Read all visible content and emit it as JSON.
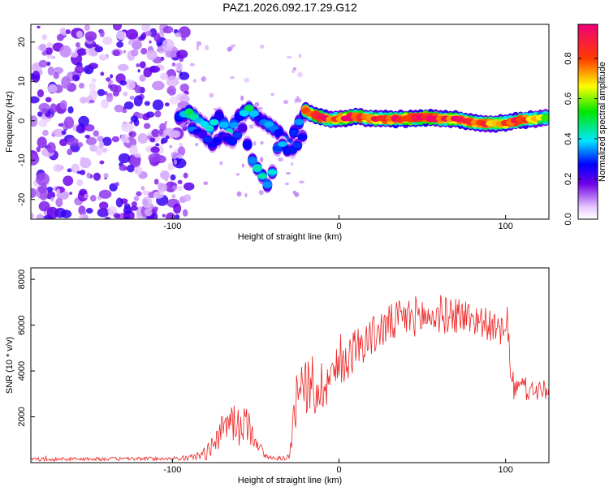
{
  "title": "PAZ1.2026.092.17.29.G12",
  "chart_data": [
    {
      "type": "heatmap",
      "title": "PAZ1.2026.092.17.29.G12",
      "xlabel": "Height of straight line (km)",
      "ylabel": "Frequency (Hz)",
      "xlim": [
        -185,
        126
      ],
      "ylim": [
        -25,
        24.5
      ],
      "xticks": [
        -100,
        0,
        100
      ],
      "xtick_labels": [
        "-100",
        "0",
        "100"
      ],
      "yticks": [
        -20,
        -10,
        0,
        10,
        20
      ],
      "ytick_labels": [
        "-20",
        "-10",
        "0",
        "10",
        "20"
      ],
      "colorbar": {
        "label": "Normalized spectral amplitude",
        "range": [
          0,
          0.97
        ],
        "ticks": [
          0.0,
          0.2,
          0.4,
          0.6,
          0.8
        ],
        "tick_labels": [
          "0.0",
          "0.2",
          "0.4",
          "0.6",
          "0.8"
        ]
      },
      "traces": [
        {
          "name": "main-trace",
          "x": [
            -20,
            -15,
            -10,
            -5,
            0,
            5,
            10,
            20,
            30,
            40,
            50,
            60,
            70,
            80,
            90,
            100,
            110,
            120,
            126
          ],
          "y": [
            2.5,
            1.5,
            0.8,
            0.3,
            0.5,
            0.8,
            1.0,
            0.6,
            0.4,
            0.5,
            0.8,
            0.6,
            0.4,
            -0.3,
            -0.8,
            -0.6,
            0.2,
            0.6,
            0.8
          ],
          "level": [
            0.85,
            0.85,
            0.9,
            0.8,
            0.8,
            0.95,
            0.9,
            0.85,
            0.9,
            0.95,
            0.95,
            0.85,
            0.9,
            0.85,
            0.8,
            0.8,
            0.9,
            0.7,
            0.6
          ]
        },
        {
          "name": "upper-branch",
          "x": [
            -96,
            -90,
            -84,
            -78,
            -72,
            -66,
            -60,
            -54,
            -48,
            -42,
            -36,
            -30,
            -26,
            -22,
            -19
          ],
          "y": [
            1.0,
            2.0,
            0.0,
            -2.0,
            1.0,
            -3.0,
            1.0,
            3.0,
            0.5,
            -1.0,
            -3.0,
            -6.0,
            -2.0,
            1.0,
            3.0
          ],
          "level": [
            0.3,
            0.5,
            0.35,
            0.45,
            0.3,
            0.5,
            0.3,
            0.45,
            0.3,
            0.35,
            0.3,
            0.3,
            0.35,
            0.3,
            0.25
          ]
        },
        {
          "name": "lower-branch",
          "x": [
            -88,
            -82,
            -76,
            -70,
            -64,
            -58,
            -52,
            -46,
            -42,
            -36,
            -30,
            -26,
            -22
          ],
          "y": [
            -2.0,
            -3.5,
            -6.0,
            -4.0,
            -5.0,
            -2.0,
            -10.0,
            -14.0,
            -17.0,
            -5.0,
            -8.0,
            -7.0,
            -4.0
          ],
          "level": [
            0.3,
            0.25,
            0.3,
            0.25,
            0.3,
            0.25,
            0.35,
            0.45,
            0.4,
            0.35,
            0.3,
            0.3,
            0.25
          ]
        }
      ],
      "noise_region": {
        "x": [
          -185,
          -100
        ],
        "y": [
          -25,
          24.5
        ],
        "level": 0.15
      }
    },
    {
      "type": "line",
      "xlabel": "Height of straight line (km)",
      "ylabel": "SNR (10 * v/v)",
      "xlim": [
        -185,
        126
      ],
      "ylim": [
        0,
        8500
      ],
      "xticks": [
        -100,
        0,
        100
      ],
      "xtick_labels": [
        "-100",
        "0",
        "100"
      ],
      "yticks": [
        2000,
        4000,
        6000,
        8000
      ],
      "ytick_labels": [
        "2000",
        "4000",
        "6000",
        "8000"
      ],
      "series": [
        {
          "name": "SNR",
          "color": "#ee2222",
          "x": [
            -185,
            -150,
            -120,
            -100,
            -90,
            -80,
            -75,
            -70,
            -65,
            -60,
            -55,
            -50,
            -45,
            -40,
            -35,
            -30,
            -27,
            -25,
            -22,
            -20,
            -17,
            -15,
            -12,
            -10,
            -5,
            0,
            5,
            10,
            15,
            20,
            25,
            30,
            35,
            40,
            45,
            50,
            55,
            60,
            65,
            70,
            75,
            80,
            85,
            90,
            95,
            100,
            101,
            102,
            103,
            104,
            105,
            110,
            115,
            120,
            126
          ],
          "y": [
            150,
            160,
            170,
            180,
            200,
            400,
            900,
            1400,
            1900,
            1500,
            1700,
            1100,
            300,
            200,
            180,
            250,
            1800,
            2600,
            3200,
            3500,
            2800,
            3300,
            3200,
            3400,
            3800,
            4100,
            4600,
            5000,
            5300,
            5500,
            5800,
            6000,
            6200,
            6300,
            6400,
            6400,
            6300,
            6500,
            6400,
            6500,
            6400,
            6300,
            6200,
            6000,
            5800,
            5600,
            6000,
            5300,
            4200,
            3800,
            3200,
            3300,
            3100,
            3200,
            3000
          ],
          "amplitude": [
            80,
            80,
            80,
            80,
            120,
            300,
            500,
            700,
            900,
            800,
            800,
            500,
            150,
            100,
            80,
            150,
            1200,
            1500,
            1600,
            1500,
            1300,
            1400,
            1300,
            1200,
            1100,
            1000,
            1000,
            1000,
            900,
            900,
            900,
            900,
            900,
            900,
            900,
            900,
            800,
            900,
            800,
            900,
            800,
            800,
            700,
            700,
            600,
            700,
            800,
            600,
            600,
            500,
            500,
            500,
            500,
            500,
            500
          ]
        }
      ]
    }
  ]
}
